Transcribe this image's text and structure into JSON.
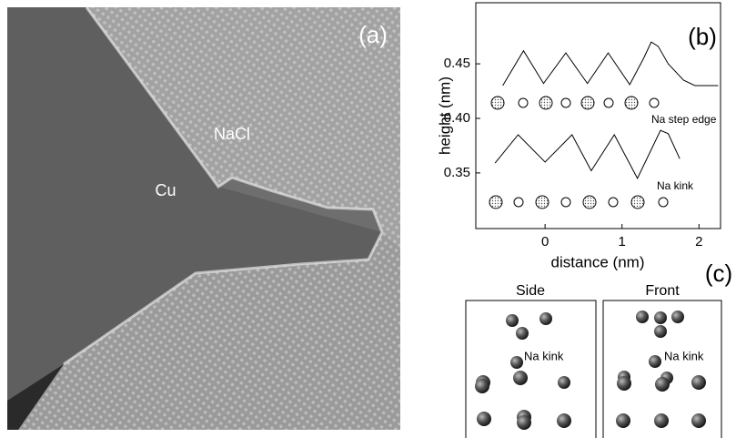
{
  "panel_a": {
    "label": "(a)",
    "nacl": "NaCl",
    "cu": "Cu"
  },
  "chart_data": {
    "type": "line",
    "label": "(b)",
    "xlabel": "distance (nm)",
    "ylabel": "height (nm)",
    "xlim": [
      -0.9,
      2.28
    ],
    "ylim": [
      0.299,
      0.506
    ],
    "xticks": [
      0,
      1,
      2
    ],
    "yticks": [
      0.35,
      {
        "value": 0.4,
        "label": "0.40"
      },
      0.45
    ],
    "series": [
      {
        "name": "Na step edge",
        "color": "#000000",
        "x": [
          -0.55,
          -0.28,
          -0.02,
          0.27,
          0.55,
          0.82,
          1.1,
          1.28,
          1.38,
          1.47,
          1.6,
          1.8,
          1.95,
          2.25
        ],
        "values": [
          0.43,
          0.462,
          0.432,
          0.46,
          0.432,
          0.46,
          0.431,
          0.455,
          0.47,
          0.466,
          0.45,
          0.435,
          0.43,
          0.43
        ]
      },
      {
        "name": "Na kink",
        "color": "#000000",
        "x": [
          -0.65,
          -0.35,
          0,
          0.35,
          0.6,
          0.9,
          1.2,
          1.5,
          1.6,
          1.75
        ],
        "values": [
          0.359,
          0.385,
          0.36,
          0.385,
          0.352,
          0.385,
          0.345,
          0.389,
          0.386,
          0.363
        ]
      }
    ]
  },
  "panel_c": {
    "label": "(c)",
    "side": "Side",
    "front": "Front",
    "side_note": "Na kink",
    "front_note": "Na kink"
  }
}
